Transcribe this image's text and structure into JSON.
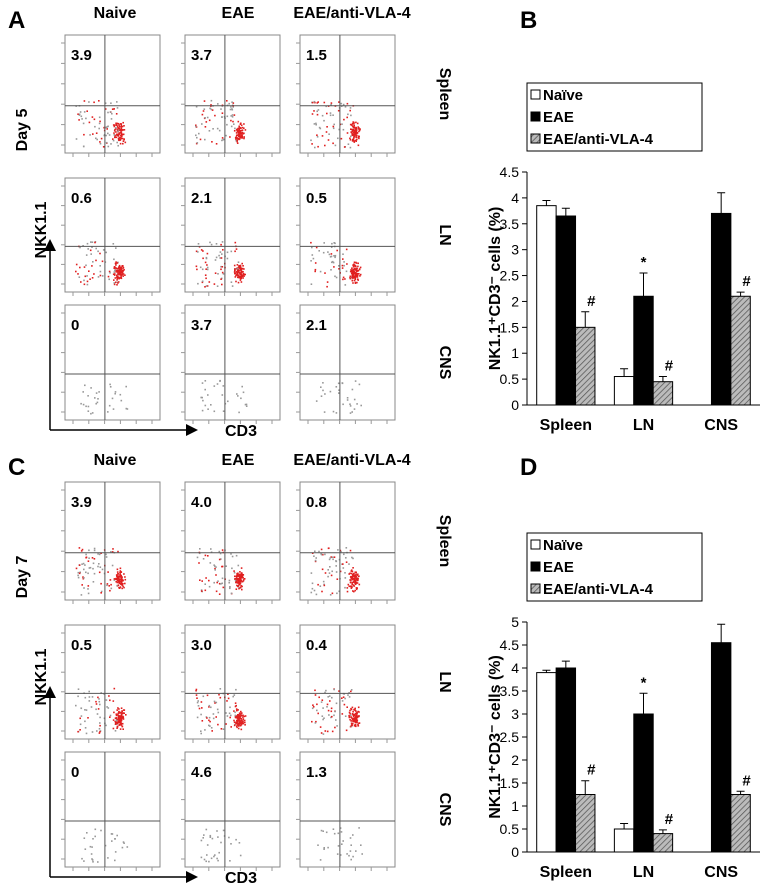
{
  "panels": [
    {
      "label": "A",
      "day": "Day 5",
      "columns": [
        "Naive",
        "EAE",
        "EAE/anti-VLA-4"
      ],
      "rows": [
        "Spleen",
        "LN",
        "CNS"
      ],
      "y_axis": "NKK1.1",
      "x_axis": "CD3",
      "quadrant_values": [
        [
          "3.9",
          "3.7",
          "1.5"
        ],
        [
          "0.6",
          "2.1",
          "0.5"
        ],
        [
          "0",
          "3.7",
          "2.1"
        ]
      ]
    },
    {
      "label": "C",
      "day": "Day 7",
      "columns": [
        "Naive",
        "EAE",
        "EAE/anti-VLA-4"
      ],
      "rows": [
        "Spleen",
        "LN",
        "CNS"
      ],
      "y_axis": "NKK1.1",
      "x_axis": "CD3",
      "quadrant_values": [
        [
          "3.9",
          "4.0",
          "0.8"
        ],
        [
          "0.5",
          "3.0",
          "0.4"
        ],
        [
          "0",
          "4.6",
          "1.3"
        ]
      ]
    }
  ],
  "chart_data": [
    {
      "type": "bar",
      "panel_label": "B",
      "y_label": "NK1.1⁺CD3⁻ cells (%)",
      "categories": [
        "Spleen",
        "LN",
        "CNS"
      ],
      "series": [
        {
          "name": "Naïve",
          "color": "#ffffff",
          "values": [
            3.85,
            0.55,
            null
          ],
          "errors": [
            0.1,
            0.15,
            null
          ]
        },
        {
          "name": "EAE",
          "color": "#000000",
          "values": [
            3.65,
            2.1,
            3.7
          ],
          "errors": [
            0.15,
            0.45,
            0.4
          ],
          "markers": [
            null,
            "*",
            null
          ]
        },
        {
          "name": "EAE/anti-VLA-4",
          "color": "#999999",
          "hatch": true,
          "values": [
            1.5,
            0.45,
            2.1
          ],
          "errors": [
            0.3,
            0.1,
            0.08
          ],
          "markers": [
            "#",
            "#",
            "#"
          ]
        }
      ],
      "ylim": [
        0,
        4.5
      ],
      "yticks": [
        0,
        0.5,
        1,
        1.5,
        2,
        2.5,
        3,
        3.5,
        4,
        4.5
      ]
    },
    {
      "type": "bar",
      "panel_label": "D",
      "y_label": "NK1.1⁺CD3⁻ cells (%)",
      "categories": [
        "Spleen",
        "LN",
        "CNS"
      ],
      "series": [
        {
          "name": "Naïve",
          "color": "#ffffff",
          "values": [
            3.9,
            0.5,
            null
          ],
          "errors": [
            0.05,
            0.12,
            null
          ]
        },
        {
          "name": "EAE",
          "color": "#000000",
          "values": [
            4.0,
            3.0,
            4.55
          ],
          "errors": [
            0.15,
            0.45,
            0.4
          ],
          "markers": [
            null,
            "*",
            null
          ]
        },
        {
          "name": "EAE/anti-VLA-4",
          "color": "#999999",
          "hatch": true,
          "values": [
            1.25,
            0.4,
            1.25
          ],
          "errors": [
            0.3,
            0.08,
            0.07
          ],
          "markers": [
            "#",
            "#",
            "#"
          ]
        }
      ],
      "ylim": [
        0,
        5
      ],
      "yticks": [
        0,
        0.5,
        1,
        1.5,
        2,
        2.5,
        3,
        3.5,
        4,
        4.5,
        5
      ]
    }
  ]
}
